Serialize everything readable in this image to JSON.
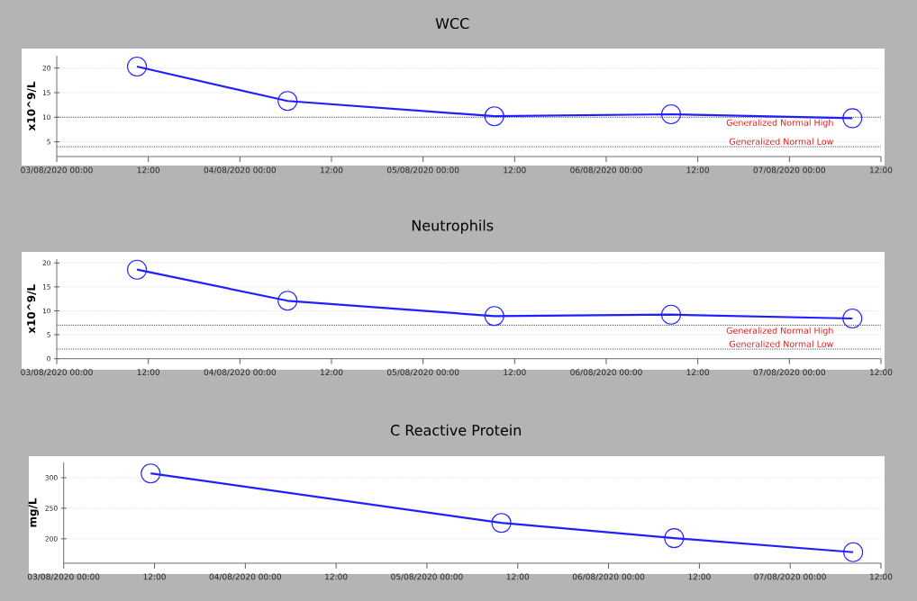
{
  "chart_data": [
    {
      "type": "line",
      "title": "WCC",
      "ylabel": "x10^9/L",
      "grid": "y",
      "marker": "circle",
      "line_style": "solid",
      "x": [
        "2020-08-03T10:30",
        "2020-08-04T06:15",
        "2020-08-05T09:20",
        "2020-08-06T08:30",
        "2020-08-07T08:15"
      ],
      "series": [
        {
          "color": "#2020ff",
          "values": [
            20.3,
            13.3,
            10.2,
            10.6,
            9.8
          ]
        }
      ],
      "xlim": [
        "2020-08-03T00:00",
        "2020-08-07T12:00"
      ],
      "xticks": [
        {
          "value": "2020-08-03T00:00",
          "label": "03/08/2020 00:00"
        },
        {
          "value": "2020-08-03T12:00",
          "label": "12:00"
        },
        {
          "value": "2020-08-04T00:00",
          "label": "04/08/2020 00:00"
        },
        {
          "value": "2020-08-04T12:00",
          "label": "12:00"
        },
        {
          "value": "2020-08-05T00:00",
          "label": "05/08/2020 00:00"
        },
        {
          "value": "2020-08-05T12:00",
          "label": "12:00"
        },
        {
          "value": "2020-08-06T00:00",
          "label": "06/08/2020 00:00"
        },
        {
          "value": "2020-08-06T12:00",
          "label": "12:00"
        },
        {
          "value": "2020-08-07T00:00",
          "label": "07/08/2020 00:00"
        },
        {
          "value": "2020-08-07T12:00",
          "label": "12:00"
        }
      ],
      "ylim": [
        2,
        22.5
      ],
      "yticks": [
        5,
        10,
        15,
        20
      ],
      "ref_lines": [
        {
          "axis": "y",
          "value": 10,
          "label": "Generalized Normal High",
          "color": "#e02020",
          "line_style": "dotted"
        },
        {
          "axis": "y",
          "value": 4,
          "label": "Generalized Normal Low",
          "color": "#e02020",
          "line_style": "dotted"
        }
      ]
    },
    {
      "type": "line",
      "title": "Neutrophils",
      "ylabel": "x10^9/L",
      "grid": "y",
      "marker": "circle",
      "line_style": "solid",
      "x": [
        "2020-08-03T10:30",
        "2020-08-04T06:15",
        "2020-08-05T09:20",
        "2020-08-06T08:30",
        "2020-08-07T08:15"
      ],
      "series": [
        {
          "color": "#2020ff",
          "values": [
            18.6,
            12.1,
            8.9,
            9.2,
            8.4
          ]
        }
      ],
      "xlim": [
        "2020-08-03T00:00",
        "2020-08-07T12:00"
      ],
      "xticks": [
        {
          "value": "2020-08-03T00:00",
          "label": "03/08/2020 00:00"
        },
        {
          "value": "2020-08-03T12:00",
          "label": "12:00"
        },
        {
          "value": "2020-08-04T00:00",
          "label": "04/08/2020 00:00"
        },
        {
          "value": "2020-08-04T12:00",
          "label": "12:00"
        },
        {
          "value": "2020-08-05T00:00",
          "label": "05/08/2020 00:00"
        },
        {
          "value": "2020-08-05T12:00",
          "label": "12:00"
        },
        {
          "value": "2020-08-06T00:00",
          "label": "06/08/2020 00:00"
        },
        {
          "value": "2020-08-06T12:00",
          "label": "12:00"
        },
        {
          "value": "2020-08-07T00:00",
          "label": "07/08/2020 00:00"
        },
        {
          "value": "2020-08-07T12:00",
          "label": "12:00"
        }
      ],
      "ylim": [
        0,
        20.8
      ],
      "yticks": [
        0,
        5,
        10,
        15,
        20
      ],
      "ref_lines": [
        {
          "axis": "y",
          "value": 7,
          "label": "Generalized Normal High",
          "color": "#e02020",
          "line_style": "dotted"
        },
        {
          "axis": "y",
          "value": 2,
          "label": "Generalized Normal Low",
          "color": "#e02020",
          "line_style": "dotted"
        }
      ]
    },
    {
      "type": "line",
      "title": "C Reactive Protein",
      "ylabel": "mg/L",
      "grid": "y",
      "marker": "circle",
      "line_style": "solid",
      "x": [
        "2020-08-03T11:30",
        "2020-08-05T09:50",
        "2020-08-06T08:40",
        "2020-08-07T08:20"
      ],
      "series": [
        {
          "color": "#2020ff",
          "values": [
            307,
            226,
            201,
            178
          ]
        }
      ],
      "xlim": [
        "2020-08-03T00:00",
        "2020-08-07T12:00"
      ],
      "xticks": [
        {
          "value": "2020-08-03T00:00",
          "label": "03/08/2020 00:00"
        },
        {
          "value": "2020-08-03T12:00",
          "label": "12:00"
        },
        {
          "value": "2020-08-04T00:00",
          "label": "04/08/2020 00:00"
        },
        {
          "value": "2020-08-04T12:00",
          "label": "12:00"
        },
        {
          "value": "2020-08-05T00:00",
          "label": "05/08/2020 00:00"
        },
        {
          "value": "2020-08-05T12:00",
          "label": "12:00"
        },
        {
          "value": "2020-08-06T00:00",
          "label": "06/08/2020 00:00"
        },
        {
          "value": "2020-08-06T12:00",
          "label": "12:00"
        },
        {
          "value": "2020-08-07T00:00",
          "label": "07/08/2020 00:00"
        },
        {
          "value": "2020-08-07T12:00",
          "label": "12:00"
        }
      ],
      "ylim": [
        160,
        325
      ],
      "yticks": [
        200,
        250,
        300
      ]
    }
  ]
}
